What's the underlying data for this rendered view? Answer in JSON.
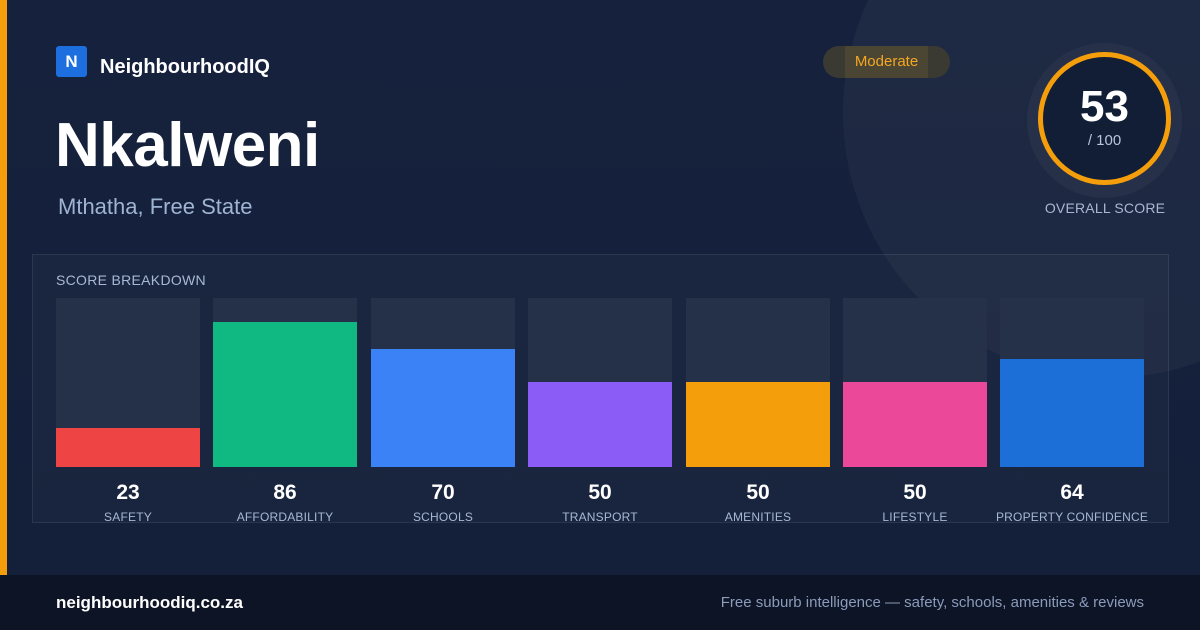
{
  "brand": {
    "logo_letter": "N",
    "name": "NeighbourhoodIQ"
  },
  "suburb": {
    "name": "Nkalweni",
    "location": "Mthatha, Free State"
  },
  "rating_badge": {
    "label": "Moderate",
    "color": "#f5a623"
  },
  "overall": {
    "score": "53",
    "max": "/ 100",
    "label": "OVERALL SCORE",
    "ring_color": "#f59e0b",
    "fraction": 0.53
  },
  "breakdown": {
    "title": "SCORE BREAKDOWN",
    "max_score": 100,
    "items": [
      {
        "label": "SAFETY",
        "value": "23",
        "score": 23,
        "color": "#ef4444"
      },
      {
        "label": "AFFORDABILITY",
        "value": "86",
        "score": 86,
        "color": "#10b981"
      },
      {
        "label": "SCHOOLS",
        "value": "70",
        "score": 70,
        "color": "#3b82f6"
      },
      {
        "label": "TRANSPORT",
        "value": "50",
        "score": 50,
        "color": "#8b5cf6"
      },
      {
        "label": "AMENITIES",
        "value": "50",
        "score": 50,
        "color": "#f59e0b"
      },
      {
        "label": "LIFESTYLE",
        "value": "50",
        "score": 50,
        "color": "#ec4899"
      },
      {
        "label": "PROPERTY CONFIDENCE",
        "value": "64",
        "score": 64,
        "color": "#1d6fd8"
      }
    ]
  },
  "footer": {
    "url": "neighbourhoodiq.co.za",
    "tagline": "Free suburb intelligence — safety, schools, amenities & reviews"
  }
}
